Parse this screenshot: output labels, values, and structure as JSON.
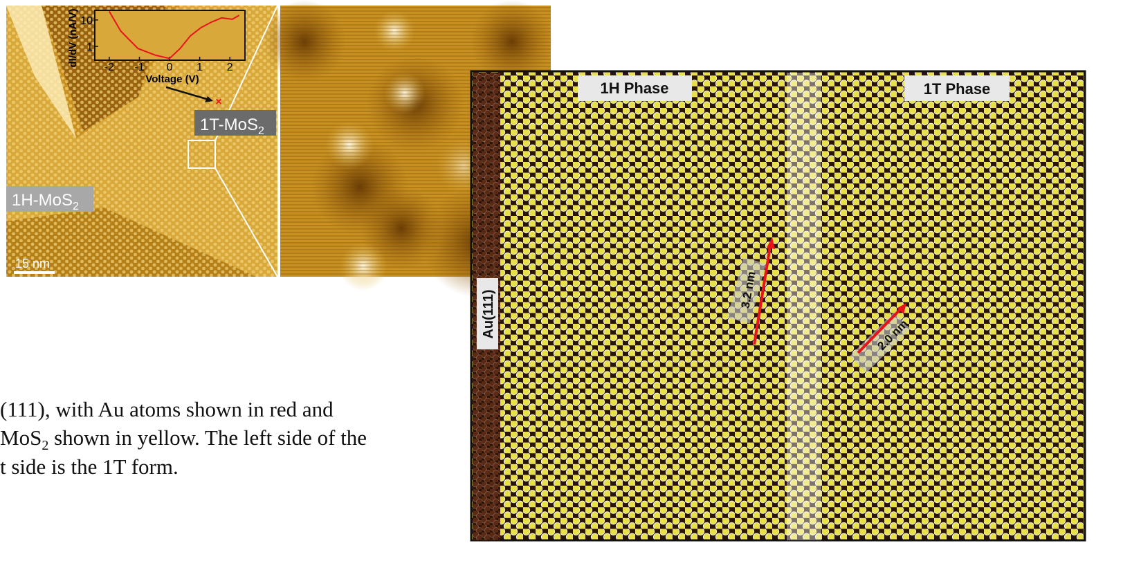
{
  "stm": {
    "label_1t": {
      "text": "1T-MoS",
      "sub": "2"
    },
    "label_1h": {
      "text": "1H-MoS",
      "sub": "2"
    },
    "scale_bar": "15 nm"
  },
  "inset": {
    "type": "line",
    "y_label": "dI/dV (nA/V)",
    "x_label": "Voltage (V)",
    "log_y": true,
    "color": "#e8141c",
    "x": [
      -2,
      -1.62,
      -1.05,
      -0.46,
      0,
      0.35,
      0.69,
      1.04,
      1.39,
      1.73,
      2.08,
      2.31
    ],
    "values": [
      21,
      3.8,
      0.83,
      0.46,
      0.35,
      0.83,
      2.5,
      5.1,
      8.3,
      12,
      10.6,
      15
    ],
    "xlim": [
      -2.48,
      2.5
    ],
    "ylim": [
      0.3,
      23
    ],
    "xticks": [
      -2,
      -1,
      0,
      1,
      2
    ],
    "yticks": [
      1,
      10
    ]
  },
  "model": {
    "phase_1h": "1H Phase",
    "phase_1t": "1T Phase",
    "substrate": "Au(111)",
    "dist_1h": "3.2 nm",
    "dist_1t": "2.0 nm"
  },
  "caption": {
    "line1": "(111), with Au atoms shown in red and",
    "line2_a": "MoS",
    "line2_sub": "2",
    "line2_b": " shown in yellow. The left side of the",
    "line3": "t side is the 1T form."
  }
}
